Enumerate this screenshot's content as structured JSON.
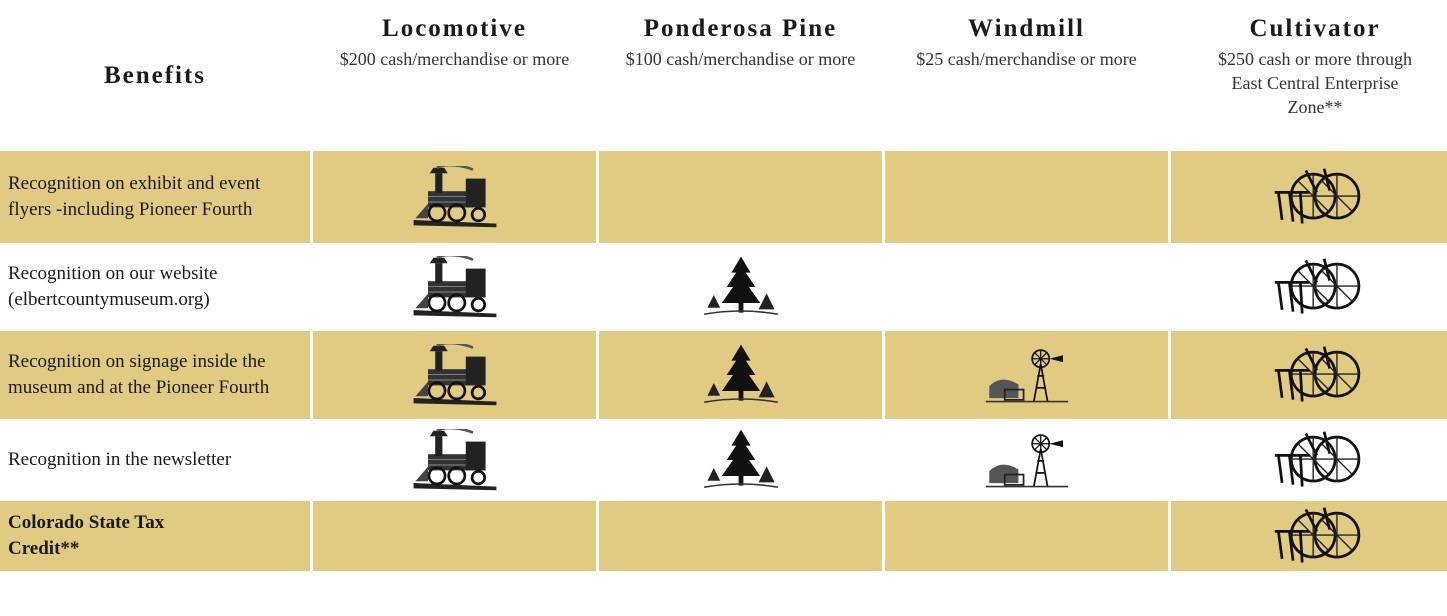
{
  "header": {
    "benefits": "Benefits",
    "tiers": [
      {
        "name": "Locomotive",
        "price": "$200 cash/merchandise or more"
      },
      {
        "name": "Ponderosa Pine",
        "price": "$100 cash/merchandise or more"
      },
      {
        "name": "Windmill",
        "price": "$25 cash/merchandise or more"
      },
      {
        "name": "Cultivator",
        "price": "$250 cash or more through East Central Enterprise Zone**"
      }
    ]
  },
  "rows": [
    {
      "benefit": "Recognition on exhibit and event flyers -including Pioneer Fourth"
    },
    {
      "benefit": "Recognition on our website (elbertcountymuseum.org)"
    },
    {
      "benefit": "Recognition on signage inside the museum and at the Pioneer Fourth"
    },
    {
      "benefit": "Recognition in the newsletter"
    },
    {
      "benefit": "Colorado State Tax Credit**"
    }
  ]
}
